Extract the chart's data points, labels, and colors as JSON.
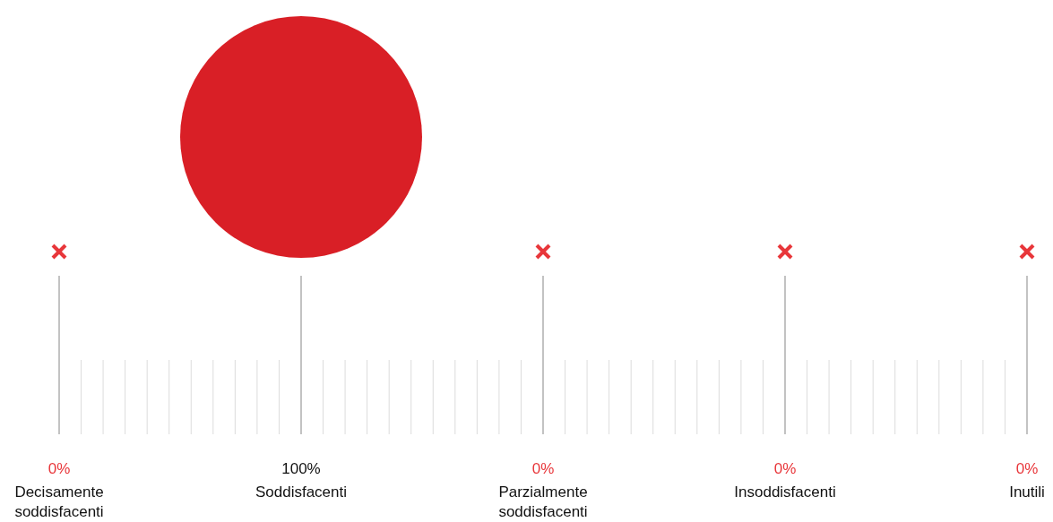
{
  "chart_data": {
    "type": "other",
    "categories": [
      "Decisamente soddisfacenti",
      "Soddisfacenti",
      "Parzialmente soddisfacenti",
      "Insoddisfacenti",
      "Inutili"
    ],
    "values": [
      0,
      100,
      0,
      0,
      0
    ],
    "value_labels": [
      "0%",
      "100%",
      "0%",
      "0%",
      "0%"
    ],
    "colors": [
      "#e8363a",
      "#d91f26",
      "#e8363a",
      "#e8363a",
      "#e8363a"
    ]
  }
}
